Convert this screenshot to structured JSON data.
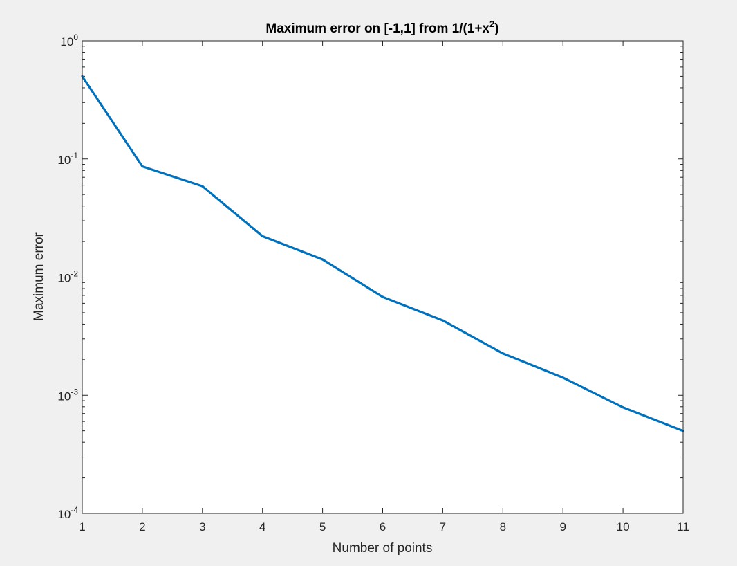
{
  "chart_data": {
    "type": "line",
    "title": {
      "main": "Maximum error on [-1,1] from 1/(1+x",
      "superscript": "2",
      "tail": ")"
    },
    "xlabel": "Number of points",
    "ylabel": "Maximum error",
    "x_scale": "linear",
    "y_scale": "log",
    "xlim": [
      1,
      11
    ],
    "ylim": [
      0.0001,
      1
    ],
    "x_ticks": [
      "1",
      "2",
      "3",
      "4",
      "5",
      "6",
      "7",
      "8",
      "9",
      "10",
      "11"
    ],
    "y_ticks": [
      {
        "base": "10",
        "exp": "-4",
        "value": 0.0001
      },
      {
        "base": "10",
        "exp": "-3",
        "value": 0.001
      },
      {
        "base": "10",
        "exp": "-2",
        "value": 0.01
      },
      {
        "base": "10",
        "exp": "-1",
        "value": 0.1
      },
      {
        "base": "10",
        "exp": "0",
        "value": 1
      }
    ],
    "grid": false,
    "series": [
      {
        "x": [
          1,
          2,
          3,
          4,
          5,
          6,
          7,
          8,
          9,
          10,
          11
        ],
        "values": [
          0.5,
          0.0865,
          0.0588,
          0.0222,
          0.0141,
          0.0068,
          0.0043,
          0.00226,
          0.00141,
          0.00079,
          0.000499
        ],
        "color": "#0072BD"
      }
    ]
  }
}
